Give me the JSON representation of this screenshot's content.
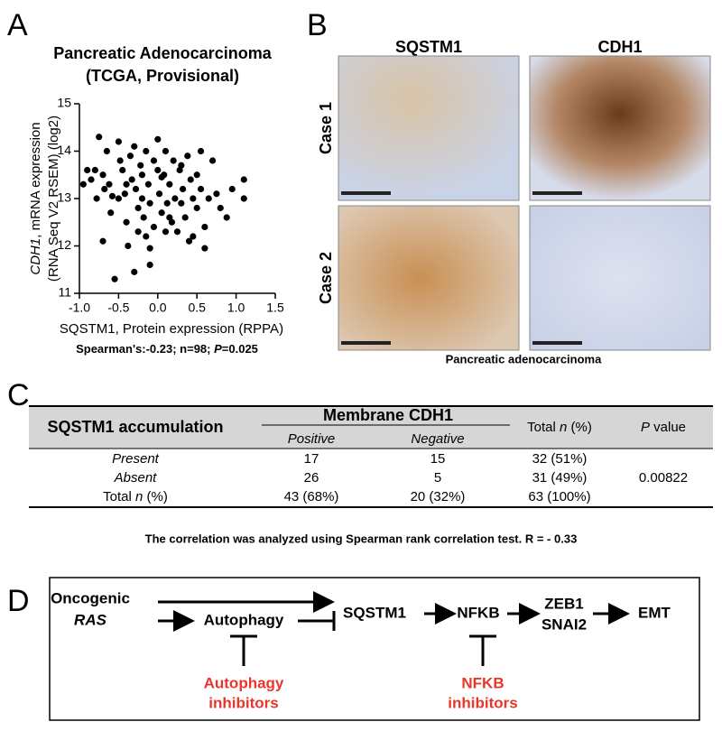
{
  "panel_labels": [
    "A",
    "B",
    "C",
    "D"
  ],
  "chart_data": {
    "type": "scatter",
    "title": [
      "Pancreatic Adenocarcinoma",
      "(TCGA, Provisional)"
    ],
    "y_label": [
      "CDH1",
      ", mRNA expression",
      "(RNA Seq V2 RSEM) (log2)"
    ],
    "x_label": "SQSTM1, Protein expression (RPPA)",
    "annotation": [
      "Spearman's:-0.23; n=98; ",
      "P",
      "=0.025"
    ],
    "color": "#000000",
    "xlim": [
      -1,
      1.5
    ],
    "xticks": [
      {
        "value": -1,
        "label": "-1.0"
      },
      {
        "value": -0.5,
        "label": "-0.5"
      },
      {
        "value": 0,
        "label": "0.0"
      },
      {
        "value": 0.5,
        "label": "0.5"
      },
      {
        "value": 1,
        "label": "1.0"
      },
      {
        "value": 1.5,
        "label": "1.5"
      }
    ],
    "ylim": [
      11,
      15
    ],
    "yticks": [
      11,
      12,
      13,
      14,
      15
    ],
    "x": [
      -0.9,
      -0.85,
      -0.8,
      -0.75,
      -0.7,
      -0.68,
      -0.65,
      -0.62,
      -0.6,
      -0.7,
      -0.55,
      -0.5,
      -0.48,
      -0.45,
      -0.42,
      -0.4,
      -0.38,
      -0.35,
      -0.33,
      -0.3,
      -0.3,
      -0.28,
      -0.25,
      -0.22,
      -0.2,
      -0.18,
      -0.15,
      -0.12,
      -0.1,
      -0.1,
      -0.05,
      -0.05,
      0,
      0,
      0.02,
      0.05,
      0.08,
      0.1,
      0.12,
      0.15,
      0.18,
      0.2,
      0.22,
      0.25,
      0.28,
      0.3,
      0.32,
      0.35,
      0.38,
      0.4,
      0.42,
      0.45,
      0.5,
      0.5,
      0.55,
      0.55,
      0.6,
      0.65,
      0.7,
      0.75,
      0.8,
      -0.95,
      -0.78,
      -0.58,
      0.88,
      0.95,
      1.1,
      1.1,
      -0.15,
      -0.2,
      0.05,
      0.3,
      -0.4,
      -0.5,
      0.45,
      -0.1,
      0.6,
      0.1,
      -0.25,
      0.15
    ],
    "values": [
      13.6,
      13.4,
      13.6,
      14.3,
      13.5,
      13.2,
      14.0,
      13.3,
      12.7,
      12.1,
      11.3,
      14.2,
      13.8,
      13.6,
      13.1,
      12.5,
      12.0,
      13.9,
      13.4,
      14.1,
      11.45,
      13.2,
      12.8,
      13.7,
      13.0,
      12.6,
      14.0,
      13.3,
      12.9,
      11.6,
      13.8,
      12.4,
      14.25,
      13.6,
      13.1,
      12.7,
      13.5,
      14.0,
      12.9,
      13.3,
      12.5,
      13.8,
      13.0,
      12.3,
      13.6,
      12.9,
      13.2,
      12.6,
      13.9,
      12.1,
      13.4,
      13.0,
      12.8,
      13.5,
      14.0,
      13.2,
      12.4,
      13.0,
      13.8,
      13.1,
      12.8,
      13.3,
      13.0,
      13.05,
      12.6,
      13.2,
      13.4,
      13.0,
      12.2,
      13.5,
      13.45,
      13.7,
      13.3,
      13.0,
      12.2,
      11.95,
      11.95,
      12.3,
      12.3,
      12.6
    ]
  },
  "images": {
    "columns": [
      "SQSTM1",
      "CDH1"
    ],
    "rows": [
      "Case 1",
      "Case 2"
    ],
    "caption": "Pancreatic adenocarcinoma"
  },
  "table": {
    "header": [
      "SQSTM1 accumulation",
      "Membrane CDH1",
      [
        "Total ",
        "n",
        " (%)"
      ],
      [
        "P",
        " value"
      ]
    ],
    "subheader": [
      "Positive",
      "Negative"
    ],
    "rows": [
      [
        "Present",
        "17",
        "15",
        "32 (51%)"
      ],
      [
        "Absent",
        "26",
        "5",
        "31 (49%)"
      ],
      [
        [
          "Total ",
          "n",
          " (%)"
        ],
        "43 (68%)",
        "20 (32%)",
        "63 (100%)"
      ]
    ],
    "p_value": "0.00822"
  },
  "note": "The correlation was analyzed using Spearman rank correlation test. R = - 0.33",
  "diagram": {
    "nodes": [
      "Oncogenic",
      "RAS",
      "Autophagy",
      "SQSTM1",
      "NFKB",
      "ZEB1",
      "SNAI2",
      "EMT"
    ],
    "inhibitors": [
      [
        "Autophagy",
        "inhibitors"
      ],
      [
        "NFKB",
        "inhibitors"
      ]
    ]
  }
}
